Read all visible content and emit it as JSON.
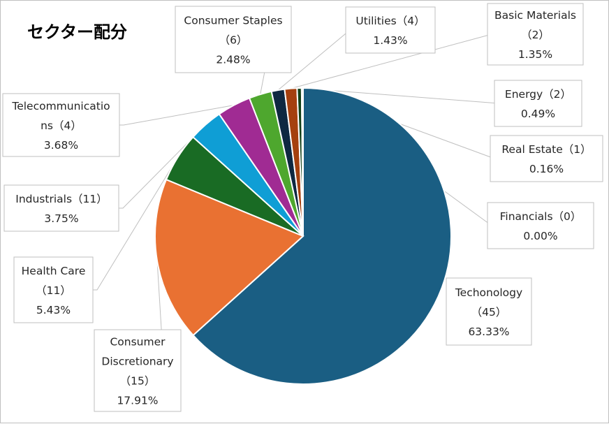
{
  "chart_data": {
    "type": "pie",
    "title": "セクター配分",
    "slices": [
      {
        "name": "Techonology",
        "count": "（45）",
        "percent": "63.33%",
        "value": 63.33,
        "color": "#1a5e83"
      },
      {
        "name": "Consumer Discretionary",
        "count": "（15）",
        "percent": "17.91%",
        "value": 17.91,
        "color": "#e97132"
      },
      {
        "name": "Health Care",
        "count": "（11）",
        "percent": "5.43%",
        "value": 5.43,
        "color": "#196b24"
      },
      {
        "name": "Industrials",
        "count": "（11）",
        "percent": "3.75%",
        "value": 3.75,
        "color": "#0f9ed5"
      },
      {
        "name": "Telecommunications",
        "count": "（4）",
        "percent": "3.68%",
        "value": 3.68,
        "color": "#a02b93"
      },
      {
        "name": "Consumer Staples",
        "count": "（6）",
        "percent": "2.48%",
        "value": 2.48,
        "color": "#4ea72e"
      },
      {
        "name": "Utilities",
        "count": "（4）",
        "percent": "1.43%",
        "value": 1.43,
        "color": "#0e2841"
      },
      {
        "name": "Basic Materials",
        "count": "（2）",
        "percent": "1.35%",
        "value": 1.35,
        "color": "#a5400f"
      },
      {
        "name": "Energy",
        "count": "（2）",
        "percent": "0.49%",
        "value": 0.49,
        "color": "#113f16"
      },
      {
        "name": "Real Estate",
        "count": "（1）",
        "percent": "0.16%",
        "value": 0.16,
        "color": "#09597d"
      },
      {
        "name": "Financials",
        "count": "（0）",
        "percent": "0.00%",
        "value": 0.0,
        "color": "#631a59"
      }
    ]
  }
}
